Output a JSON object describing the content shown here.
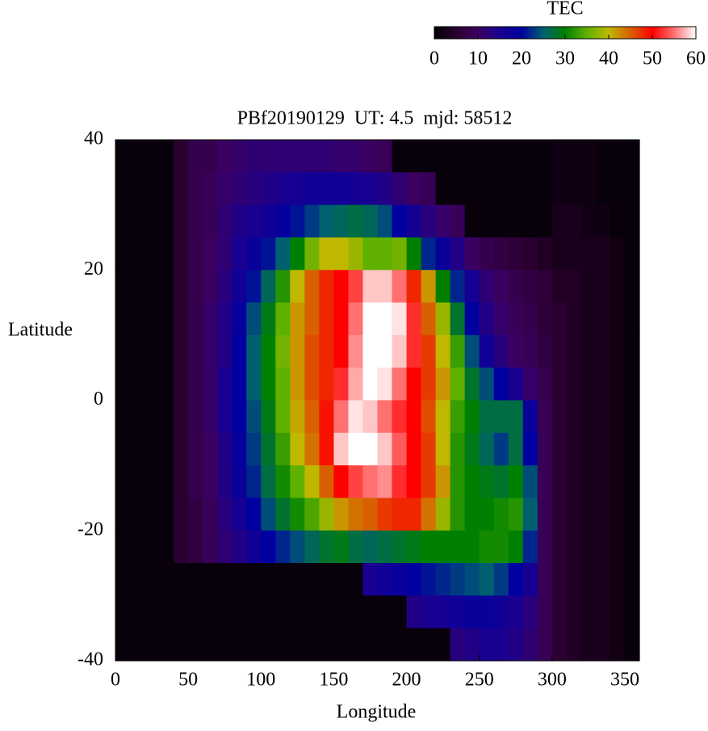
{
  "chart_data": {
    "type": "heatmap",
    "title": "PBf20190129  UT: 4.5  mjd: 58512",
    "x_label": "Longitude",
    "y_label": "Latitude",
    "xlim": [
      0,
      360
    ],
    "ylim": [
      -40,
      40
    ],
    "xticks": [
      0,
      50,
      100,
      150,
      200,
      250,
      300,
      350
    ],
    "yticks": [
      -40,
      -20,
      0,
      20,
      40
    ],
    "x": [
      5,
      15,
      25,
      35,
      45,
      55,
      65,
      75,
      85,
      95,
      105,
      115,
      125,
      135,
      145,
      155,
      165,
      175,
      185,
      195,
      205,
      215,
      225,
      235,
      245,
      255,
      265,
      275,
      285,
      295,
      305,
      315,
      325,
      335,
      345,
      355
    ],
    "y": [
      37.5,
      32.5,
      27.5,
      22.5,
      17.5,
      12.5,
      7.5,
      2.5,
      -2.5,
      -7.5,
      -12.5,
      -17.5,
      -22.5,
      -27.5,
      -32.5,
      -37.5
    ],
    "values": [
      [
        1,
        1,
        1,
        1,
        5,
        8,
        8,
        10,
        11,
        12,
        12,
        12,
        12,
        12,
        12,
        11,
        11,
        10,
        9,
        1,
        1,
        1,
        1,
        1,
        1,
        1,
        1,
        1,
        1,
        1,
        2,
        2,
        2,
        1,
        1,
        1
      ],
      [
        1,
        1,
        1,
        1,
        5,
        8,
        9,
        11,
        12,
        13,
        14,
        15,
        16,
        17,
        17,
        17,
        16,
        15,
        14,
        12,
        10,
        9,
        1,
        1,
        1,
        1,
        1,
        1,
        1,
        1,
        2,
        2,
        2,
        1,
        1,
        1
      ],
      [
        1,
        1,
        1,
        1,
        5,
        8,
        9,
        12,
        14,
        15,
        17,
        19,
        21,
        23,
        25,
        26,
        27,
        26,
        24,
        20,
        16,
        13,
        11,
        9,
        1,
        1,
        1,
        1,
        1,
        1,
        3,
        3,
        2,
        2,
        1,
        1
      ],
      [
        1,
        1,
        1,
        1,
        5,
        8,
        10,
        12,
        15,
        18,
        21,
        25,
        30,
        36,
        40,
        40,
        38,
        35,
        35,
        36,
        30,
        22,
        18,
        14,
        10,
        8,
        7,
        6,
        5,
        4,
        3,
        3,
        3,
        3,
        2,
        1
      ],
      [
        1,
        1,
        1,
        1,
        5,
        8,
        10,
        13,
        17,
        21,
        26,
        32,
        40,
        45,
        48,
        50,
        53,
        58,
        58,
        55,
        48,
        42,
        30,
        22,
        16,
        12,
        10,
        8,
        7,
        6,
        4,
        4,
        3,
        3,
        2,
        1
      ],
      [
        1,
        1,
        1,
        1,
        5,
        8,
        11,
        14,
        19,
        24,
        29,
        35,
        42,
        45,
        48,
        50,
        55,
        60,
        60,
        59,
        52,
        45,
        38,
        28,
        20,
        14,
        11,
        9,
        8,
        6,
        5,
        4,
        3,
        3,
        2,
        1
      ],
      [
        1,
        1,
        1,
        1,
        5,
        8,
        11,
        14,
        20,
        25,
        30,
        36,
        42,
        46,
        48,
        50,
        56,
        60,
        60,
        58,
        52,
        47,
        40,
        33,
        24,
        17,
        13,
        10,
        9,
        7,
        5,
        4,
        3,
        3,
        2,
        1
      ],
      [
        1,
        1,
        1,
        1,
        5,
        8,
        11,
        15,
        20,
        25,
        30,
        35,
        42,
        46,
        48,
        52,
        57,
        60,
        59,
        55,
        50,
        47,
        42,
        35,
        28,
        24,
        20,
        15,
        11,
        8,
        5,
        4,
        3,
        3,
        2,
        1
      ],
      [
        1,
        1,
        1,
        1,
        5,
        8,
        11,
        15,
        20,
        24,
        29,
        35,
        41,
        45,
        49,
        55,
        59,
        58,
        55,
        52,
        50,
        46,
        40,
        33,
        30,
        27,
        27,
        27,
        18,
        9,
        5,
        4,
        3,
        3,
        2,
        1
      ],
      [
        1,
        1,
        1,
        1,
        5,
        8,
        10,
        14,
        19,
        23,
        28,
        33,
        40,
        44,
        49,
        58,
        60,
        60,
        58,
        54,
        50,
        47,
        40,
        32,
        29,
        26,
        23,
        27,
        20,
        9,
        5,
        4,
        3,
        3,
        2,
        1
      ],
      [
        1,
        1,
        1,
        1,
        5,
        8,
        10,
        14,
        18,
        22,
        27,
        31,
        35,
        40,
        45,
        50,
        53,
        55,
        56,
        52,
        50,
        47,
        42,
        32,
        30,
        29,
        28,
        30,
        24,
        9,
        5,
        4,
        3,
        3,
        2,
        1
      ],
      [
        1,
        1,
        1,
        1,
        5,
        7,
        9,
        13,
        16,
        20,
        24,
        28,
        31,
        34,
        38,
        42,
        44,
        45,
        47,
        48,
        48,
        44,
        38,
        32,
        30,
        30,
        31,
        32,
        25,
        9,
        5,
        4,
        3,
        3,
        2,
        1
      ],
      [
        1,
        1,
        1,
        1,
        5,
        7,
        9,
        12,
        14,
        17,
        20,
        22,
        24,
        26,
        28,
        29,
        27,
        26,
        27,
        28,
        29,
        30,
        30,
        30,
        30,
        31,
        31,
        30,
        22,
        9,
        5,
        4,
        3,
        3,
        2,
        1
      ],
      [
        1,
        1,
        1,
        1,
        1,
        1,
        1,
        1,
        1,
        1,
        1,
        1,
        1,
        1,
        1,
        1,
        1,
        15,
        17,
        18,
        20,
        21,
        22,
        23,
        24,
        25,
        23,
        20,
        16,
        9,
        5,
        4,
        3,
        3,
        2,
        1
      ],
      [
        1,
        1,
        1,
        1,
        1,
        1,
        1,
        1,
        1,
        1,
        1,
        1,
        1,
        1,
        1,
        1,
        1,
        1,
        1,
        1,
        14,
        15,
        16,
        17,
        18,
        18,
        17,
        15,
        13,
        9,
        5,
        4,
        3,
        3,
        2,
        1
      ],
      [
        1,
        1,
        1,
        1,
        1,
        1,
        1,
        1,
        1,
        1,
        1,
        1,
        1,
        1,
        1,
        1,
        1,
        1,
        1,
        1,
        1,
        1,
        1,
        13,
        14,
        15,
        15,
        14,
        12,
        9,
        5,
        4,
        3,
        3,
        2,
        1
      ]
    ],
    "colorbar_title": "TEC",
    "clim": [
      0,
      60
    ],
    "colorbar_ticks": [
      0,
      10,
      20,
      30,
      40,
      50,
      60
    ],
    "colormap": [
      "#000000",
      "#2a0030",
      "#3c0060",
      "#1a0090",
      "#0000a0",
      "#006070",
      "#008000",
      "#60b000",
      "#c0b800",
      "#d86000",
      "#ff0000",
      "#ff7070",
      "#ffffff"
    ]
  }
}
